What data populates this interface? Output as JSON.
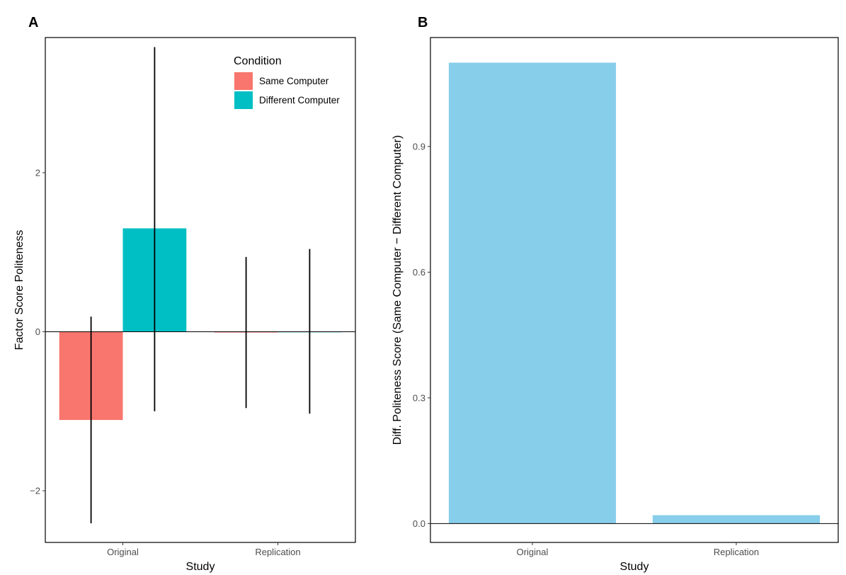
{
  "chart_data": [
    {
      "panel_label": "A",
      "type": "bar",
      "xlabel": "Study",
      "ylabel": "Factor Score Politeness",
      "categories": [
        "Original",
        "Replication"
      ],
      "ylim": [
        -2.65,
        3.7
      ],
      "yticks": [
        -2,
        0,
        2
      ],
      "ytick_labels": [
        "−2",
        "0",
        "2"
      ],
      "grid": false,
      "legend": {
        "title": "Condition",
        "position": "top-right"
      },
      "series": [
        {
          "name": "Same Computer",
          "color": "#F8766D",
          "values": [
            -1.11,
            -0.01
          ],
          "error_low": [
            -2.41,
            -0.96
          ],
          "error_high": [
            0.19,
            0.94
          ]
        },
        {
          "name": "Different Computer",
          "color": "#00BFC4",
          "values": [
            1.3,
            0.0
          ],
          "error_low": [
            -1.0,
            -1.03
          ],
          "error_high": [
            3.58,
            1.04
          ]
        }
      ]
    },
    {
      "panel_label": "B",
      "type": "bar",
      "xlabel": "Study",
      "ylabel": "Diff. Politeness Score (Same Computer − Different Computer)",
      "categories": [
        "Original",
        "Replication"
      ],
      "ylim": [
        -0.045,
        1.16
      ],
      "yticks": [
        0.0,
        0.3,
        0.6,
        0.9
      ],
      "ytick_labels": [
        "0.0",
        "0.3",
        "0.6",
        "0.9"
      ],
      "grid": false,
      "color": "#87CEEB",
      "values": [
        1.1,
        0.02
      ]
    }
  ]
}
